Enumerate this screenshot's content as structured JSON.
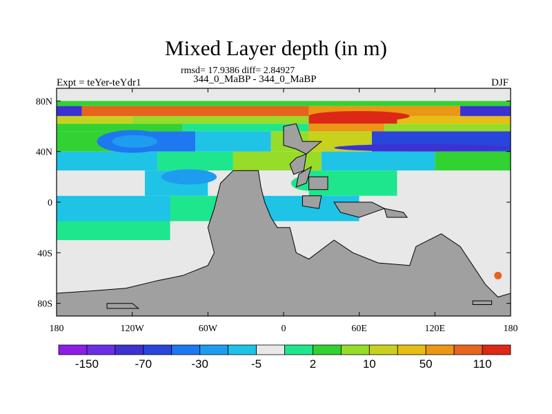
{
  "chart_data": {
    "type": "heatmap",
    "title": "Mixed Layer depth (in m)",
    "stats": "rmsd= 17.9386 diff= 2.84927",
    "period": "344_0_MaBP - 344_0_MaBP",
    "experiment": "Expt = teYer-teYdr1",
    "season": "DJF",
    "xlim": [
      -180,
      180
    ],
    "ylim": [
      -90,
      90
    ],
    "x_ticks": [
      {
        "value": -180,
        "label": "180"
      },
      {
        "value": -120,
        "label": "120W"
      },
      {
        "value": -60,
        "label": "60W"
      },
      {
        "value": 0,
        "label": "0"
      },
      {
        "value": 60,
        "label": "60E"
      },
      {
        "value": 120,
        "label": "120E"
      },
      {
        "value": 180,
        "label": "180"
      }
    ],
    "y_ticks": [
      {
        "value": 80,
        "label": "80N"
      },
      {
        "value": 40,
        "label": "40N"
      },
      {
        "value": 0,
        "label": "0"
      },
      {
        "value": -40,
        "label": "40S"
      },
      {
        "value": -80,
        "label": "80S"
      }
    ],
    "colorbar": {
      "colors": [
        "#8c1ee6",
        "#6a2ee6",
        "#3c32d2",
        "#2846dc",
        "#1e78f0",
        "#1e9cf0",
        "#1ec3e6",
        "#e8e8e8",
        "#1ee68c",
        "#32d232",
        "#96dc28",
        "#c8d21e",
        "#e6be14",
        "#eb9614",
        "#e6641e",
        "#dc2814"
      ],
      "labels": [
        "-150",
        "-70",
        "-30",
        "-5",
        "2",
        "10",
        "50",
        "110"
      ]
    },
    "bands": [
      {
        "lat_top": 90,
        "lat_bottom": 80,
        "segments": [
          {
            "lon": [
              -180,
              180
            ],
            "color": "#e8e8e8"
          }
        ]
      },
      {
        "lat_top": 80,
        "lat_bottom": 76,
        "segments": [
          {
            "lon": [
              -180,
              180
            ],
            "color": "#32d232"
          }
        ]
      },
      {
        "lat_top": 76,
        "lat_bottom": 68,
        "segments": [
          {
            "lon": [
              -180,
              -160
            ],
            "color": "#3c32d2"
          },
          {
            "lon": [
              -160,
              20
            ],
            "color": "#e6641e"
          },
          {
            "lon": [
              20,
              140
            ],
            "color": "#eb9614"
          },
          {
            "lon": [
              140,
              180
            ],
            "color": "#3c32d2"
          }
        ]
      },
      {
        "lat_top": 68,
        "lat_bottom": 62,
        "segments": [
          {
            "lon": [
              -180,
              -120
            ],
            "color": "#c8d21e"
          },
          {
            "lon": [
              -120,
              20
            ],
            "color": "#96dc28"
          },
          {
            "lon": [
              20,
              90
            ],
            "color": "#dc2814"
          },
          {
            "lon": [
              90,
              180
            ],
            "color": "#e6be14"
          }
        ]
      },
      {
        "lat_top": 62,
        "lat_bottom": 56,
        "segments": [
          {
            "lon": [
              -180,
              -80
            ],
            "color": "#32d232"
          },
          {
            "lon": [
              -80,
              20
            ],
            "color": "#1ee68c"
          },
          {
            "lon": [
              20,
              80
            ],
            "color": "#eb9614"
          },
          {
            "lon": [
              80,
              180
            ],
            "color": "#96dc28"
          }
        ]
      },
      {
        "lat_top": 56,
        "lat_bottom": 40,
        "segments": [
          {
            "lon": [
              -180,
              -130
            ],
            "color": "#32d232"
          },
          {
            "lon": [
              -130,
              -70
            ],
            "color": "#1e78f0"
          },
          {
            "lon": [
              -70,
              -10
            ],
            "color": "#1ec3e6"
          },
          {
            "lon": [
              -10,
              20
            ],
            "color": "#96dc28"
          },
          {
            "lon": [
              20,
              70
            ],
            "color": "#c8d21e"
          },
          {
            "lon": [
              70,
              180
            ],
            "color": "#2846dc"
          }
        ]
      },
      {
        "lat_top": 40,
        "lat_bottom": 25,
        "segments": [
          {
            "lon": [
              -180,
              -100
            ],
            "color": "#1ec3e6"
          },
          {
            "lon": [
              -100,
              -40
            ],
            "color": "#1ee68c"
          },
          {
            "lon": [
              -40,
              30
            ],
            "color": "#96dc28"
          },
          {
            "lon": [
              30,
              120
            ],
            "color": "#1ec3e6"
          },
          {
            "lon": [
              120,
              180
            ],
            "color": "#32d232"
          }
        ]
      },
      {
        "lat_top": 25,
        "lat_bottom": 5,
        "segments": [
          {
            "lon": [
              -180,
              -110
            ],
            "color": "#e8e8e8"
          },
          {
            "lon": [
              -110,
              -60
            ],
            "color": "#1ec3e6"
          },
          {
            "lon": [
              -60,
              20
            ],
            "color": "#e8e8e8"
          },
          {
            "lon": [
              20,
              90
            ],
            "color": "#1ee68c"
          },
          {
            "lon": [
              90,
              180
            ],
            "color": "#e8e8e8"
          }
        ]
      },
      {
        "lat_top": 5,
        "lat_bottom": -15,
        "segments": [
          {
            "lon": [
              -180,
              -90
            ],
            "color": "#1ec3e6"
          },
          {
            "lon": [
              -90,
              -40
            ],
            "color": "#1ee68c"
          },
          {
            "lon": [
              -40,
              60
            ],
            "color": "#1ec3e6"
          },
          {
            "lon": [
              60,
              180
            ],
            "color": "#e8e8e8"
          }
        ]
      },
      {
        "lat_top": -15,
        "lat_bottom": -30,
        "segments": [
          {
            "lon": [
              -180,
              -90
            ],
            "color": "#1ee68c"
          },
          {
            "lon": [
              -90,
              180
            ],
            "color": "#e8e8e8"
          }
        ]
      },
      {
        "lat_top": -30,
        "lat_bottom": -90,
        "segments": [
          {
            "lon": [
              -180,
              180
            ],
            "color": "#e8e8e8"
          }
        ]
      }
    ],
    "patches": [
      {
        "lon": -120,
        "lat": 48,
        "rlon": 28,
        "rlat": 9,
        "color": "#1e78f0"
      },
      {
        "lon": -118,
        "lat": 48,
        "rlon": 18,
        "rlat": 5,
        "color": "#1e9cf0"
      },
      {
        "lon": 110,
        "lat": 43,
        "rlon": 70,
        "rlat": 3,
        "color": "#3c32d2"
      },
      {
        "lon": -75,
        "lat": 20,
        "rlon": 22,
        "rlat": 6,
        "color": "#1e9cf0"
      },
      {
        "lon": 60,
        "lat": 68,
        "rlon": 40,
        "rlat": 4,
        "color": "#dc2814"
      },
      {
        "lon": -40,
        "lat": -60,
        "rlon": 15,
        "rlat": 4,
        "color": "#1e9cf0"
      },
      {
        "lon": 20,
        "lat": 15,
        "rlon": 14,
        "rlat": 6,
        "color": "#1ee68c"
      },
      {
        "lon": 170,
        "lat": -58,
        "rlon": 3,
        "rlat": 3,
        "color": "#e6641e"
      }
    ],
    "land": [
      [
        [
          -40,
          25
        ],
        [
          -20,
          25
        ],
        [
          -18,
          12
        ],
        [
          -15,
          0
        ],
        [
          -10,
          -12
        ],
        [
          -5,
          -20
        ],
        [
          5,
          -20
        ],
        [
          10,
          -40
        ],
        [
          20,
          -45
        ],
        [
          40,
          -30
        ],
        [
          55,
          -40
        ],
        [
          75,
          -48
        ],
        [
          100,
          -50
        ],
        [
          105,
          -35
        ],
        [
          125,
          -25
        ],
        [
          140,
          -35
        ],
        [
          150,
          -50
        ],
        [
          160,
          -65
        ],
        [
          170,
          -75
        ],
        [
          180,
          -72
        ],
        [
          180,
          -90
        ],
        [
          -180,
          -90
        ],
        [
          -180,
          -72
        ],
        [
          -150,
          -70
        ],
        [
          -125,
          -68
        ],
        [
          -100,
          -62
        ],
        [
          -80,
          -58
        ],
        [
          -60,
          -50
        ],
        [
          -55,
          -40
        ],
        [
          -60,
          -20
        ],
        [
          -55,
          -5
        ],
        [
          -50,
          15
        ]
      ],
      [
        [
          0,
          60
        ],
        [
          10,
          62
        ],
        [
          15,
          48
        ],
        [
          30,
          48
        ],
        [
          18,
          38
        ],
        [
          10,
          42
        ],
        [
          0,
          45
        ]
      ],
      [
        [
          10,
          35
        ],
        [
          18,
          38
        ],
        [
          16,
          25
        ],
        [
          8,
          22
        ],
        [
          5,
          30
        ]
      ],
      [
        [
          12,
          22
        ],
        [
          22,
          28
        ],
        [
          18,
          15
        ],
        [
          10,
          12
        ]
      ],
      [
        [
          20,
          20
        ],
        [
          35,
          20
        ],
        [
          35,
          10
        ],
        [
          20,
          10
        ]
      ],
      [
        [
          15,
          5
        ],
        [
          30,
          5
        ],
        [
          28,
          -5
        ],
        [
          15,
          -3
        ]
      ],
      [
        [
          40,
          0
        ],
        [
          70,
          0
        ],
        [
          80,
          -5
        ],
        [
          60,
          -12
        ],
        [
          45,
          -8
        ]
      ],
      [
        [
          80,
          -5
        ],
        [
          95,
          -8
        ],
        [
          98,
          -12
        ],
        [
          82,
          -12
        ]
      ],
      [
        [
          -140,
          -80
        ],
        [
          -120,
          -80
        ],
        [
          -115,
          -84
        ],
        [
          -140,
          -84
        ]
      ],
      [
        [
          150,
          -78
        ],
        [
          165,
          -78
        ],
        [
          165,
          -81
        ],
        [
          150,
          -81
        ]
      ]
    ]
  }
}
